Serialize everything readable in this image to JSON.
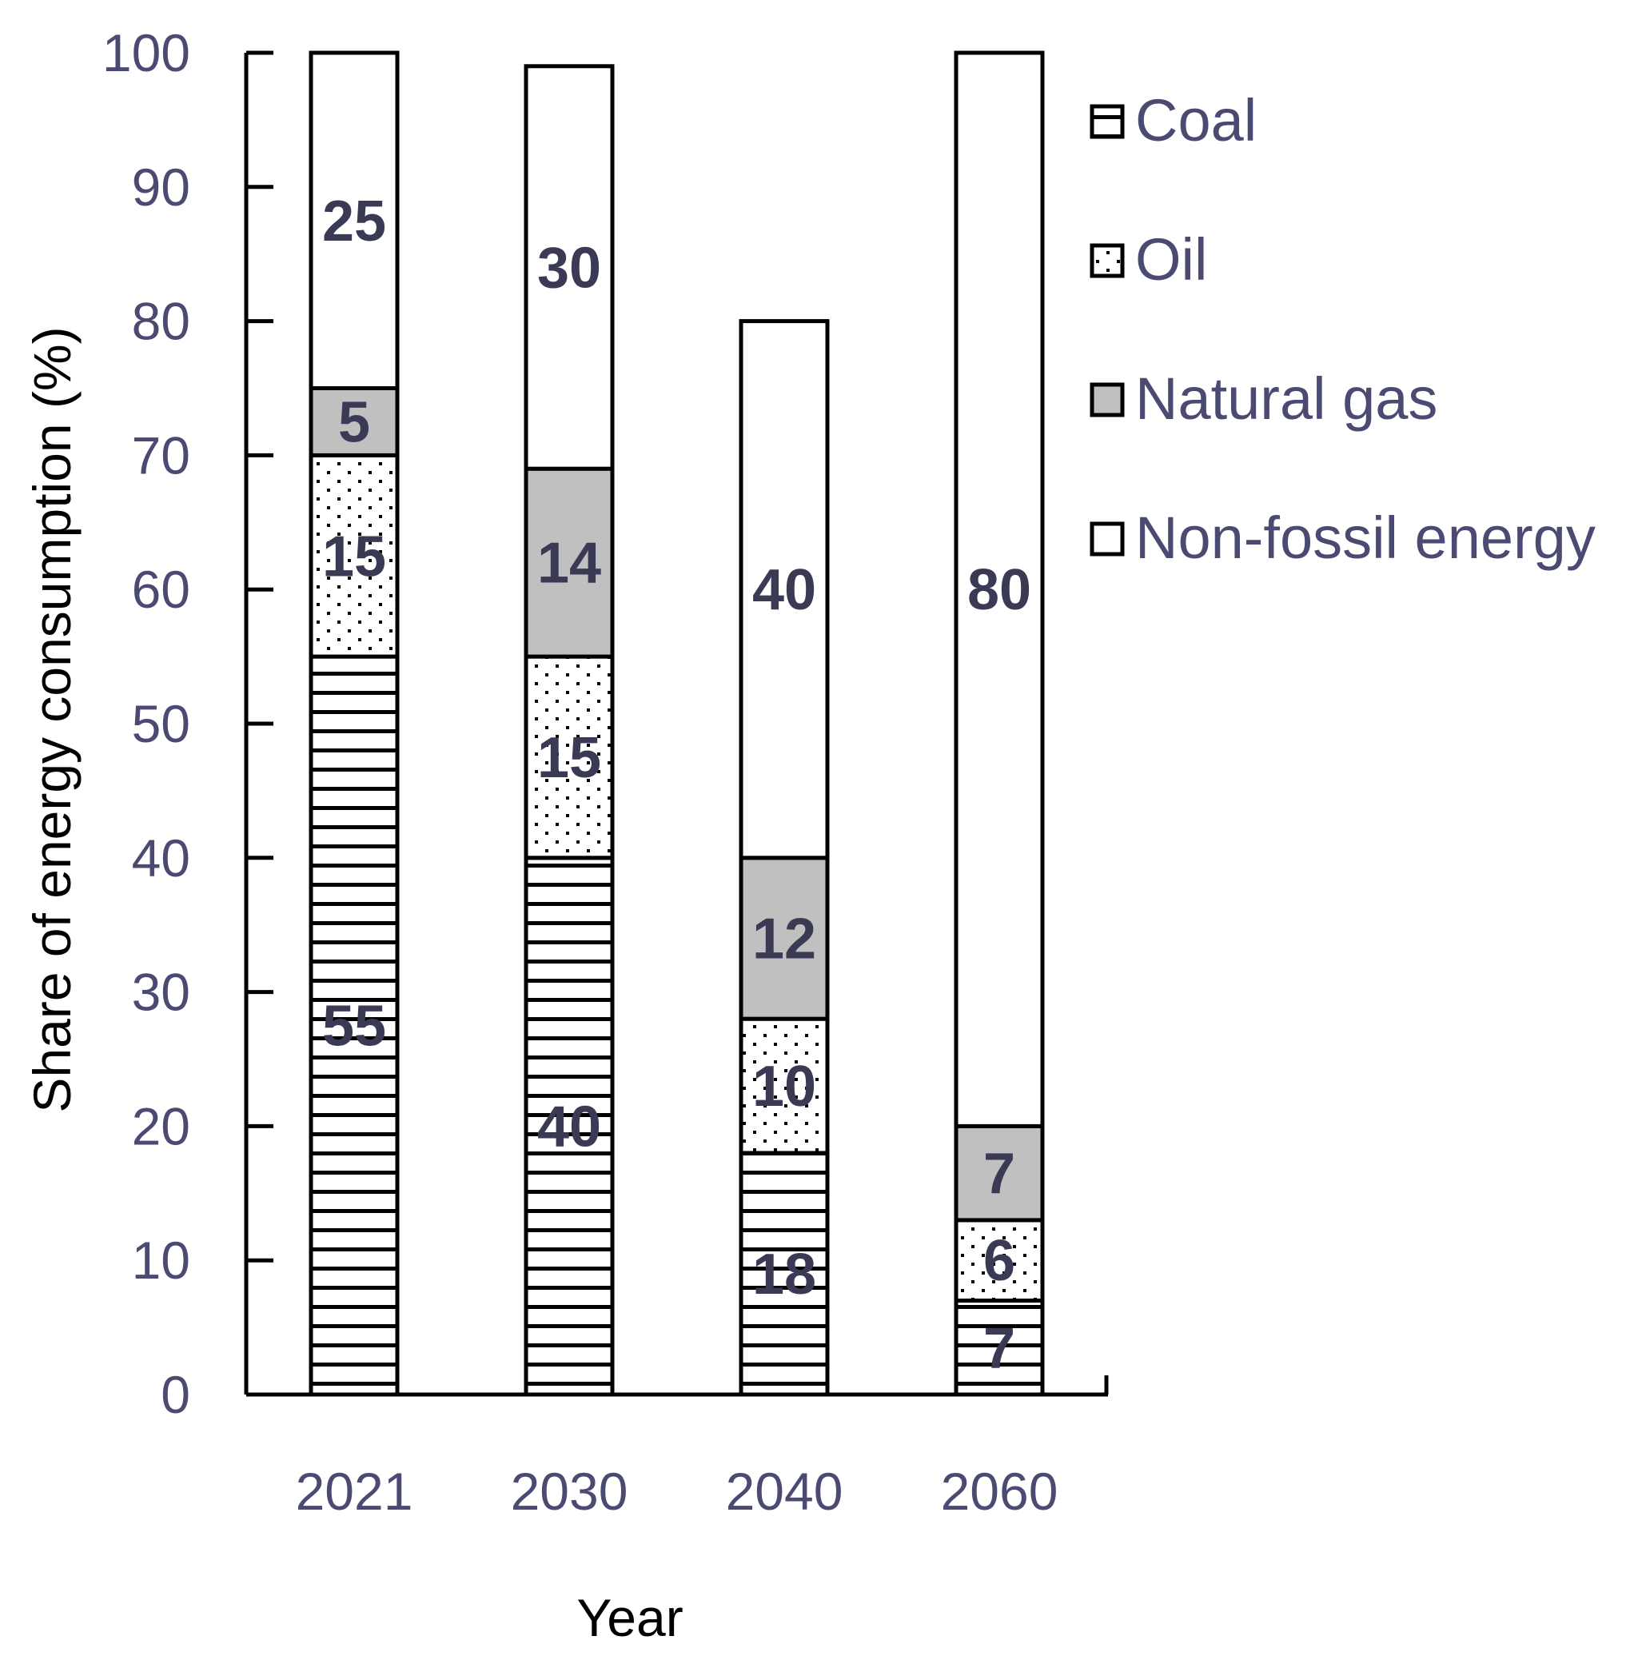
{
  "chart_data": {
    "type": "bar",
    "stacked": true,
    "categories": [
      "2021",
      "2030",
      "2040",
      "2060"
    ],
    "series": [
      {
        "name": "Coal",
        "values": [
          55,
          40,
          18,
          7
        ],
        "pattern": "horizontal-lines",
        "color": "#000000"
      },
      {
        "name": "Oil",
        "values": [
          15,
          15,
          10,
          6
        ],
        "pattern": "dots",
        "color": "#ffffff"
      },
      {
        "name": "Natural gas",
        "values": [
          5,
          14,
          12,
          7
        ],
        "pattern": "solid",
        "color": "#c0c0c0"
      },
      {
        "name": "Non-fossil energy",
        "values": [
          25,
          30,
          40,
          80
        ],
        "pattern": "solid",
        "color": "#ffffff"
      }
    ],
    "data_labels": [
      [
        "55",
        "15",
        "5",
        "25"
      ],
      [
        "40",
        "15",
        "14",
        "30"
      ],
      [
        "18",
        "10",
        "12",
        "40"
      ],
      [
        "7",
        "6",
        "7",
        "80"
      ]
    ],
    "title": "",
    "xlabel": "Year",
    "ylabel": "Share of energy consumption (%)",
    "ylim": [
      0,
      100
    ],
    "yticks": [
      "0",
      "10",
      "20",
      "30",
      "40",
      "50",
      "60",
      "70",
      "80",
      "90",
      "100"
    ],
    "grid": false,
    "legend_position": "right"
  }
}
